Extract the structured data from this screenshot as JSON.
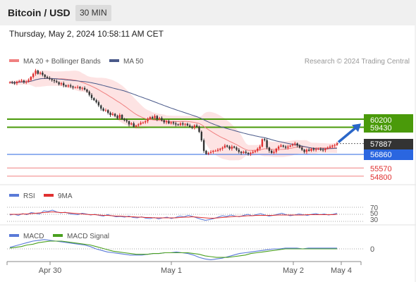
{
  "header": {
    "title": "Bitcoin / USD",
    "interval": "30 MIN",
    "datetime": "Thursday, May 2, 2024 10:58:11 AM CET"
  },
  "colors": {
    "bullish": "#e03030",
    "bearish": "#333333",
    "ma20": "#f08080",
    "bands_fill": "#fcdada",
    "ma50": "#4a5a8a",
    "resistance": "#4a9a0a",
    "pivot": "#2a66e0",
    "support": "#f08080",
    "arrow": "#2a66c8",
    "rsi": "#5a7ad8",
    "rsi_ma": "#e03030",
    "macd": "#5a7ad8",
    "macd_signal": "#4aa020",
    "last_price_tag": "#333333"
  },
  "chart_data": [
    {
      "type": "candlestick",
      "title": "Bitcoin / USD",
      "legend": [
        {
          "name": "MA 20 + Bollinger Bands",
          "color": "#f08080"
        },
        {
          "name": "MA 50",
          "color": "#4a5a8a"
        }
      ],
      "watermark": "Research © 2024 Trading Central",
      "ylim": [
        54500,
        61200
      ],
      "x_ticks": [
        "Apr 30",
        "May 1",
        "May 2",
        "May 4"
      ],
      "levels": [
        {
          "value": 60200,
          "label": "60200",
          "kind": "resistance"
        },
        {
          "value": 59430,
          "label": "59430",
          "kind": "resistance"
        },
        {
          "value": 57887,
          "label": "57887",
          "kind": "last"
        },
        {
          "value": 56860,
          "label": "56860",
          "kind": "pivot"
        },
        {
          "value": 55570,
          "label": "55570",
          "kind": "support"
        },
        {
          "value": 54800,
          "label": "54800",
          "kind": "support"
        }
      ],
      "target_arrow": {
        "from": 57887,
        "to": 60050
      },
      "closes": [
        63700,
        63650,
        63600,
        63750,
        63800,
        63850,
        63700,
        63750,
        63900,
        64200,
        64500,
        64800,
        64500,
        64600,
        64400,
        64200,
        64100,
        64000,
        63900,
        63800,
        63700,
        63500,
        63600,
        63400,
        63300,
        63400,
        63300,
        63200,
        63200,
        63250,
        63100,
        63150,
        63000,
        62800,
        62500,
        62200,
        62000,
        61800,
        61500,
        61200,
        61000,
        61050,
        60800,
        60600,
        60700,
        60500,
        60300,
        60600,
        60200,
        60100,
        60000,
        59700,
        59800,
        59500,
        59600,
        59700,
        59850,
        59900,
        60000,
        60200,
        60400,
        60300,
        60500,
        60200,
        60300,
        60100,
        59900,
        60000,
        59800,
        59900,
        59800,
        59700,
        59650,
        59800,
        59700,
        59750,
        59600,
        59500,
        59400,
        59600,
        59500,
        59000,
        58200,
        57200,
        56900,
        57000,
        57100,
        57200,
        57200,
        57300,
        57400,
        57500,
        57700,
        57600,
        57400,
        57600,
        57500,
        57300,
        57100,
        57000,
        57100,
        57000,
        56900,
        57000,
        57100,
        57200,
        57400,
        57600,
        58300,
        58200,
        57500,
        57200,
        57000,
        57100,
        57400,
        57600,
        57700,
        57600,
        57500,
        57600,
        57700,
        57800,
        57900,
        57700,
        57500,
        57300,
        57100,
        57300,
        57200,
        57400,
        57300,
        57350,
        57400,
        57300,
        57250,
        57400,
        57500,
        57600,
        57700,
        57750,
        57887
      ]
    },
    {
      "type": "line",
      "title": "",
      "legend": [
        {
          "name": "RSI",
          "color": "#5a7ad8"
        },
        {
          "name": "9MA",
          "color": "#e03030"
        }
      ],
      "ylim": [
        20,
        80
      ],
      "levels": [
        70,
        50,
        30
      ],
      "series": [
        {
          "name": "RSI",
          "values": [
            48,
            50,
            47,
            52,
            49,
            55,
            53,
            51,
            60,
            58,
            62,
            57,
            54,
            56,
            52,
            50,
            49,
            53,
            51,
            48,
            50,
            47,
            45,
            49,
            46,
            43,
            44,
            42,
            45,
            41,
            40,
            43,
            39,
            38,
            41,
            37,
            40,
            42,
            38,
            41,
            45,
            43,
            47,
            44,
            40,
            36,
            33,
            35,
            38,
            42,
            46,
            44,
            48,
            45,
            43,
            47,
            50,
            46,
            49,
            52,
            48,
            45,
            47,
            50,
            53,
            49,
            46,
            48,
            51,
            49,
            47,
            50,
            52,
            49,
            51,
            48,
            50,
            53
          ]
        },
        {
          "name": "9MA",
          "values": [
            50,
            50,
            50,
            51,
            51,
            52,
            53,
            54,
            55,
            56,
            57,
            56,
            55,
            55,
            54,
            53,
            52,
            51,
            50,
            49,
            49,
            48,
            47,
            47,
            46,
            45,
            45,
            44,
            43,
            43,
            42,
            42,
            41,
            41,
            40,
            40,
            40,
            40,
            40,
            40,
            41,
            42,
            42,
            43,
            42,
            41,
            40,
            39,
            39,
            40,
            41,
            42,
            43,
            44,
            44,
            45,
            46,
            46,
            47,
            47,
            47,
            47,
            47,
            48,
            48,
            48,
            48,
            48,
            48,
            48,
            49,
            49,
            49,
            49,
            49,
            49,
            49,
            50
          ]
        }
      ]
    },
    {
      "type": "line",
      "title": "",
      "legend": [
        {
          "name": "MACD",
          "color": "#5a7ad8"
        },
        {
          "name": "MACD Signal",
          "color": "#4aa020"
        }
      ],
      "zero_label": "0",
      "series": [
        {
          "name": "MACD",
          "values": [
            2,
            4,
            6,
            8,
            10,
            11,
            12,
            11,
            10,
            9,
            8,
            7,
            6,
            5,
            3,
            0,
            -2,
            -4,
            -5,
            -6,
            -7,
            -8,
            -8,
            -8,
            -7,
            -6,
            -6,
            -5,
            -5,
            -4,
            -5,
            -6,
            -8,
            -11,
            -13,
            -14,
            -13,
            -12,
            -10,
            -8,
            -6,
            -5,
            -4,
            -3,
            -2,
            -1,
            0,
            0,
            1,
            1,
            1,
            0,
            1,
            1,
            1,
            1,
            1,
            1
          ]
        },
        {
          "name": "MACD Signal",
          "values": [
            1,
            2,
            3,
            5,
            6,
            8,
            9,
            10,
            10,
            10,
            9,
            8,
            7,
            6,
            5,
            3,
            1,
            -1,
            -3,
            -4,
            -5,
            -6,
            -7,
            -7,
            -7,
            -6,
            -6,
            -5,
            -5,
            -5,
            -5,
            -5,
            -6,
            -7,
            -9,
            -10,
            -11,
            -11,
            -11,
            -10,
            -9,
            -8,
            -6,
            -5,
            -4,
            -3,
            -2,
            -1,
            0,
            0,
            0,
            0,
            0,
            0,
            0,
            0,
            0,
            0
          ]
        }
      ]
    }
  ]
}
